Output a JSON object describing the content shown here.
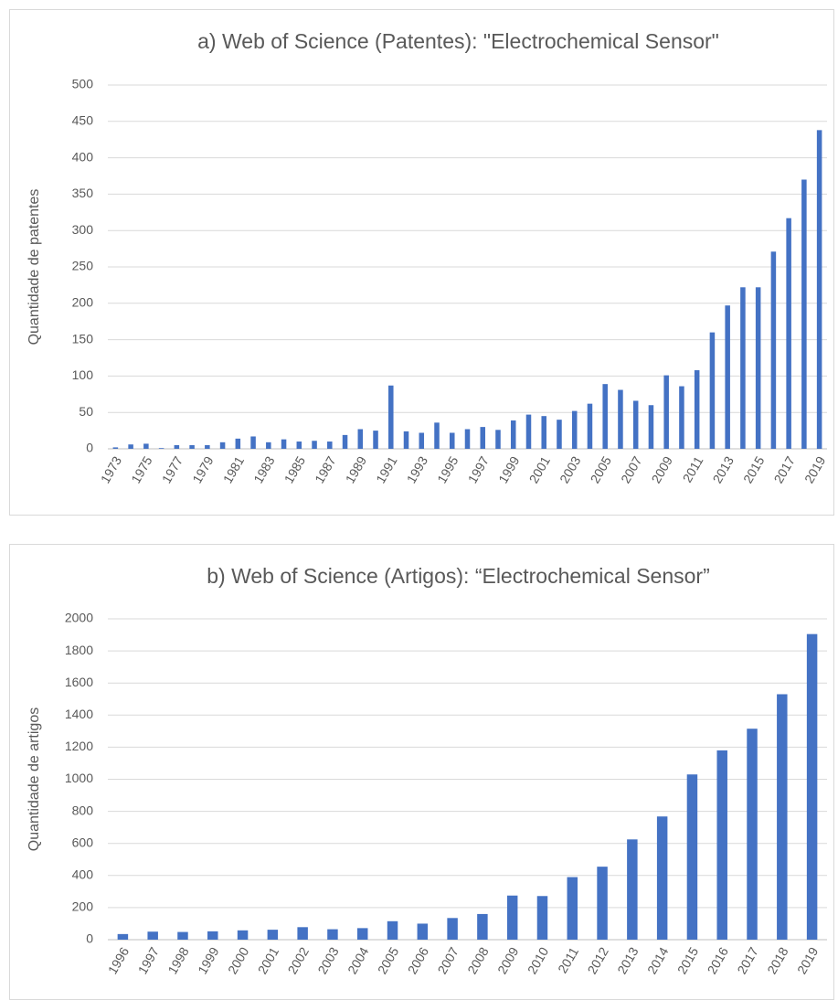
{
  "chart_data": [
    {
      "type": "bar",
      "title": "a) Web of Science (Patentes): \"Electrochemical Sensor\"",
      "y_label": "Quantidade de patentes",
      "categories": [
        "1973",
        null,
        "1975",
        null,
        "1977",
        null,
        "1979",
        null,
        "1981",
        null,
        "1983",
        null,
        "1985",
        null,
        "1987",
        null,
        "1989",
        null,
        "1991",
        null,
        "1993",
        null,
        "1995",
        null,
        "1997",
        null,
        "1999",
        null,
        "2001",
        null,
        "2003",
        null,
        "2005",
        null,
        "2007",
        null,
        "2009",
        null,
        "2011",
        null,
        "2013",
        null,
        "2015",
        null,
        "2017",
        null,
        "2019"
      ],
      "values": [
        2,
        6,
        7,
        1,
        5,
        5,
        5,
        9,
        14,
        17,
        9,
        13,
        10,
        11,
        10,
        19,
        27,
        25,
        87,
        24,
        22,
        36,
        22,
        27,
        30,
        26,
        39,
        47,
        45,
        40,
        52,
        62,
        89,
        81,
        66,
        60,
        101,
        86,
        108,
        160,
        197,
        222,
        222,
        271,
        317,
        370,
        438
      ],
      "color": "#4472c4",
      "ylim": [
        0,
        500
      ],
      "yticks": [
        0,
        50,
        100,
        150,
        200,
        250,
        300,
        350,
        400,
        450,
        500
      ],
      "grid": true
    },
    {
      "type": "bar",
      "title": "b) Web of Science (Artigos): “Electrochemical Sensor”",
      "y_label": "Quantidade de artigos",
      "categories": [
        "1996",
        "1997",
        "1998",
        "1999",
        "2000",
        "2001",
        "2002",
        "2003",
        "2004",
        "2005",
        "2006",
        "2007",
        "2008",
        "2009",
        "2010",
        "2011",
        "2012",
        "2013",
        "2014",
        "2015",
        "2016",
        "2017",
        "2018",
        "2019"
      ],
      "values": [
        35,
        50,
        48,
        52,
        58,
        62,
        78,
        65,
        72,
        115,
        100,
        135,
        160,
        275,
        272,
        390,
        455,
        625,
        768,
        1030,
        1180,
        1315,
        1530,
        1905
      ],
      "color": "#4472c4",
      "ylim": [
        0,
        2000
      ],
      "yticks": [
        0,
        200,
        400,
        600,
        800,
        1000,
        1200,
        1400,
        1600,
        1800,
        2000
      ],
      "grid": true
    }
  ]
}
